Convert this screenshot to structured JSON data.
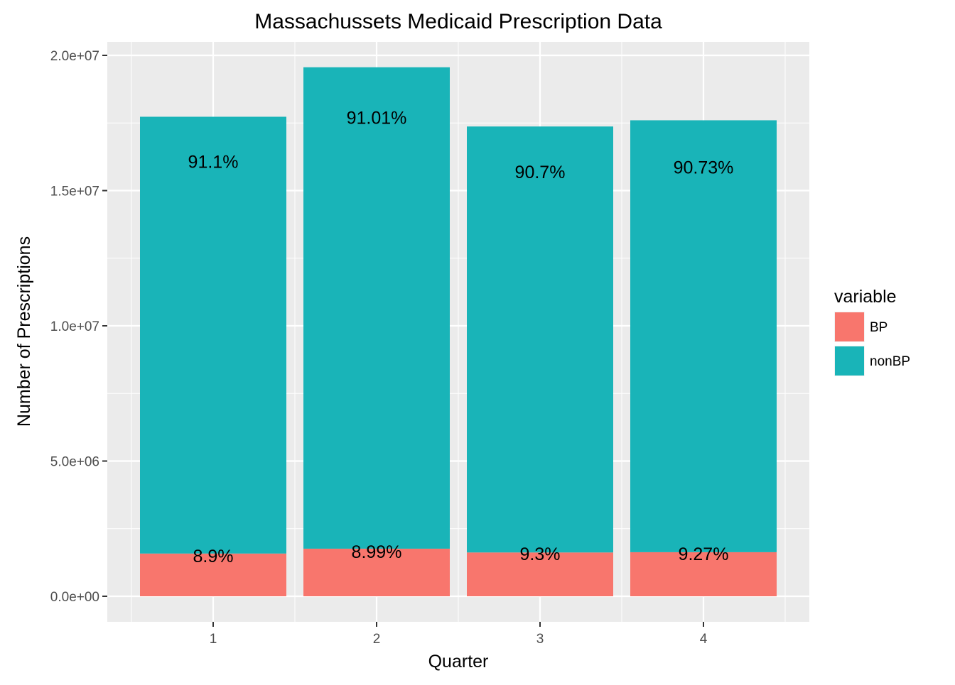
{
  "chart_data": {
    "type": "bar",
    "stacked": true,
    "title": "Massachussets Medicaid Prescription Data",
    "xlabel": "Quarter",
    "ylabel": "Number of Prescriptions",
    "categories": [
      "1",
      "2",
      "3",
      "4"
    ],
    "ylim": [
      -1600000,
      20800000
    ],
    "yticks": [
      0,
      5000000,
      10000000,
      15000000,
      20000000
    ],
    "ytick_labels": [
      "0.0e+00",
      "5.0e+06",
      "1.0e+07",
      "1.5e+07",
      "2.0e+07"
    ],
    "grid": true,
    "legend": {
      "title": "variable",
      "position": "right"
    },
    "series": [
      {
        "name": "BP",
        "color": "#F8766D",
        "values": [
          1580000,
          1760000,
          1620000,
          1630000
        ],
        "labels": [
          "8.9%",
          "8.99%",
          "9.3%",
          "9.27%"
        ]
      },
      {
        "name": "nonBP",
        "color": "#19B4B8",
        "values": [
          16150000,
          17800000,
          15750000,
          15970000
        ],
        "labels": [
          "91.1%",
          "91.01%",
          "90.7%",
          "90.73%"
        ]
      }
    ],
    "label_positions_value": {
      "BP": [
        1500000,
        1660000,
        1570000,
        1570000
      ],
      "nonBP": [
        16070000,
        17700000,
        15700000,
        15870000
      ]
    }
  }
}
